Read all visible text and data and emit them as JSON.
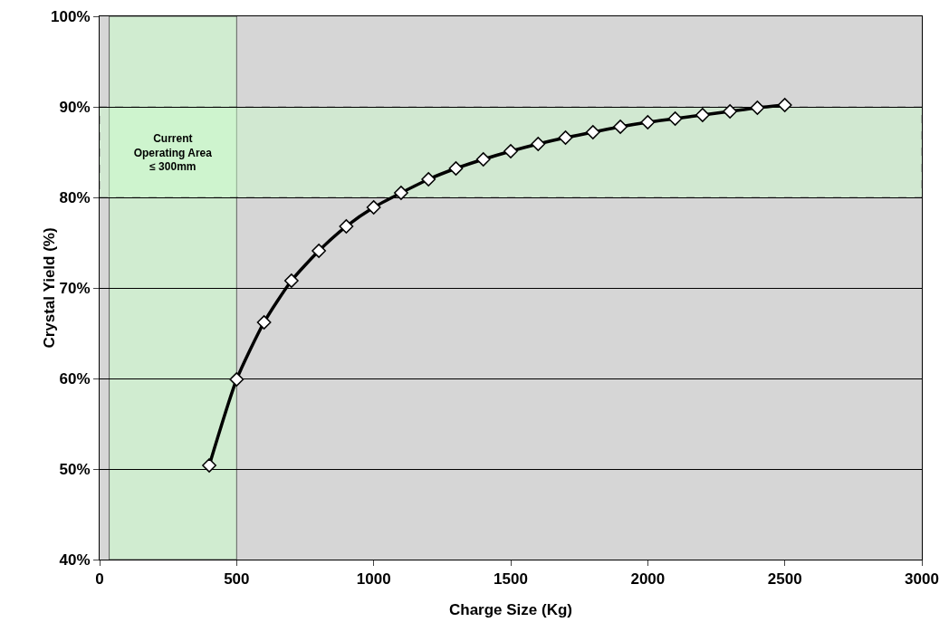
{
  "chart_data": {
    "type": "line",
    "xlabel": "Charge Size (Kg)",
    "ylabel": "Crystal Yield (%)",
    "x": [
      400,
      500,
      600,
      700,
      800,
      900,
      1000,
      1100,
      1200,
      1300,
      1400,
      1500,
      1600,
      1700,
      1800,
      1900,
      2000,
      2100,
      2200,
      2300,
      2400,
      2500
    ],
    "series": [
      {
        "color": "#000000",
        "values": [
          50.4,
          59.9,
          66.2,
          70.8,
          74.1,
          76.8,
          78.9,
          80.5,
          82.0,
          83.2,
          84.2,
          85.1,
          85.9,
          86.6,
          87.2,
          87.8,
          88.3,
          88.7,
          89.1,
          89.5,
          89.9,
          90.2
        ]
      }
    ],
    "xlim": [
      0,
      3000
    ],
    "xticks": [
      0,
      500,
      1000,
      1500,
      2000,
      2500,
      3000
    ],
    "ylim": [
      40,
      100
    ],
    "yticks": [
      {
        "value": 40,
        "label": "40%"
      },
      {
        "value": 50,
        "label": "50%"
      },
      {
        "value": 60,
        "label": "60%"
      },
      {
        "value": 70,
        "label": "70%"
      },
      {
        "value": 80,
        "label": "80%"
      },
      {
        "value": 90,
        "label": "90%"
      },
      {
        "value": 100,
        "label": "100%"
      }
    ],
    "bands": [
      {
        "axis": "x",
        "from": 35,
        "to": 500,
        "color": "#ccffcc"
      },
      {
        "axis": "y",
        "from": 80,
        "to": 90,
        "color": "#ccffcc"
      }
    ],
    "annotations": [
      "Current Operating Area ≤ 300mm"
    ],
    "grid": "y",
    "marker": "diamond",
    "line_style": "solid"
  }
}
